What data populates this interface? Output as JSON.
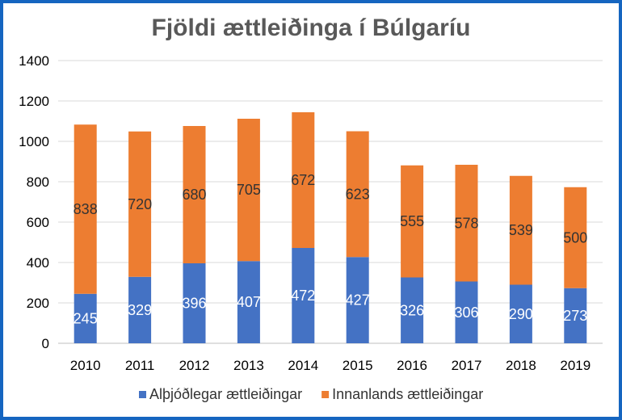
{
  "chart_data": {
    "type": "bar",
    "stacked": true,
    "title": "Fjöldi ættleiðinga í Búlgaríu",
    "categories": [
      "2010",
      "2011",
      "2012",
      "2013",
      "2014",
      "2015",
      "2016",
      "2017",
      "2018",
      "2019"
    ],
    "series": [
      {
        "name": "Alþjóðlegar ættleiðingar",
        "color": "#4472c4",
        "label_color": "#ffffff",
        "values": [
          245,
          329,
          396,
          407,
          472,
          427,
          326,
          306,
          290,
          273
        ]
      },
      {
        "name": "Innanlands ættleiðingar",
        "color": "#ed7d31",
        "label_color": "#333333",
        "values": [
          838,
          720,
          680,
          705,
          672,
          623,
          555,
          578,
          539,
          500
        ]
      }
    ],
    "ylim": [
      0,
      1400
    ],
    "yticks": [
      0,
      200,
      400,
      600,
      800,
      1000,
      1200,
      1400
    ],
    "grid": true,
    "legend": "bottom",
    "frame_color": "#1565c0"
  }
}
